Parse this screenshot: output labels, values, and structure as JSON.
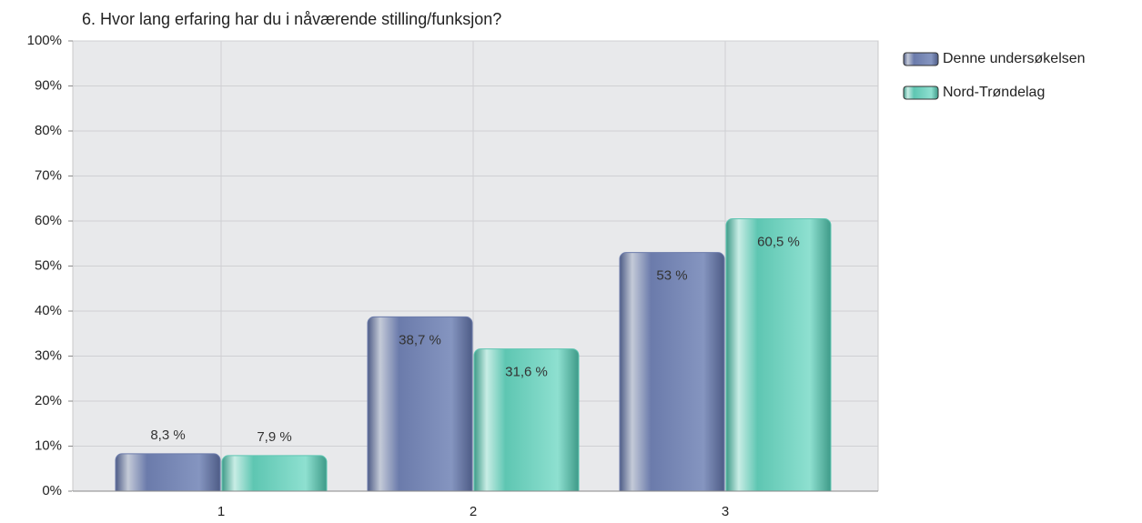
{
  "chart_data": {
    "type": "bar",
    "title": "6. Hvor lang erfaring har du i nåværende stilling/funksjon?",
    "categories": [
      "1",
      "2",
      "3"
    ],
    "series": [
      {
        "name": "Denne undersøkelsen",
        "color": "#6b7bab",
        "values": [
          8.3,
          38.7,
          53
        ],
        "value_labels": [
          "8,3 %",
          "38,7 %",
          "53 %"
        ]
      },
      {
        "name": "Nord-Trøndelag",
        "color": "#5ec6b2",
        "values": [
          7.9,
          31.6,
          60.5
        ],
        "value_labels": [
          "7,9 %",
          "31,6 %",
          "60,5 %"
        ]
      }
    ],
    "ylim": [
      0,
      100
    ],
    "yticks": [
      {
        "value": 0,
        "label": "0%"
      },
      {
        "value": 10,
        "label": "10%"
      },
      {
        "value": 20,
        "label": "20%"
      },
      {
        "value": 30,
        "label": "30%"
      },
      {
        "value": 40,
        "label": "40%"
      },
      {
        "value": 50,
        "label": "50%"
      },
      {
        "value": 60,
        "label": "60%"
      },
      {
        "value": 70,
        "label": "70%"
      },
      {
        "value": 80,
        "label": "80%"
      },
      {
        "value": 90,
        "label": "90%"
      },
      {
        "value": 100,
        "label": "100%"
      }
    ],
    "grid": true,
    "legend": "top-right"
  }
}
